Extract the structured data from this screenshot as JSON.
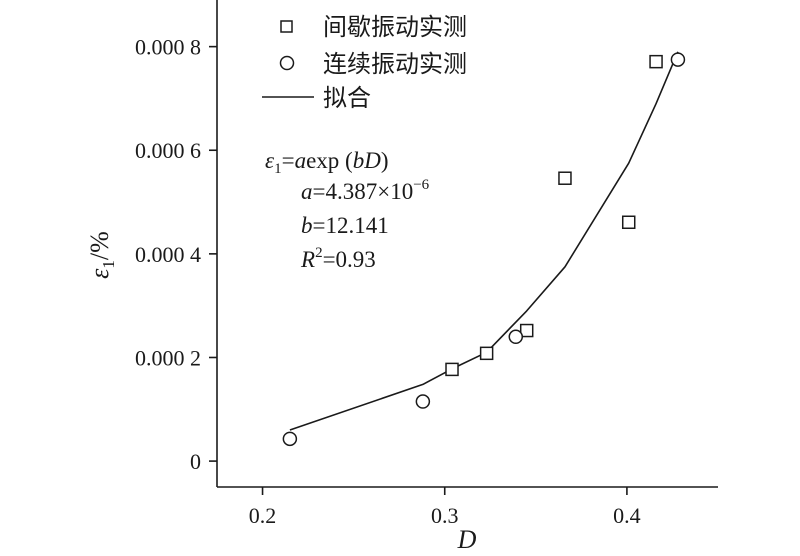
{
  "chart_data": {
    "type": "scatter",
    "xlabel": "D",
    "ylabel": "ε1/%",
    "xlim": [
      0.175,
      0.45
    ],
    "ylim": [
      -5e-05,
      0.00089
    ],
    "x_ticks": [
      0.2,
      0.3,
      0.4
    ],
    "x_tick_labels": [
      "0.2",
      "0.3",
      "0.4"
    ],
    "y_ticks": [
      0,
      0.0002,
      0.0004,
      0.0006,
      0.0008
    ],
    "y_tick_labels": [
      "0",
      "0.000 2",
      "0.000 4",
      "0.000 6",
      "0.000 8"
    ],
    "grid": false,
    "legend_position": "top-left",
    "series": [
      {
        "name": "间歇振动实测",
        "marker": "square",
        "points": [
          {
            "x": 0.304,
            "y": 0.000177
          },
          {
            "x": 0.323,
            "y": 0.000208
          },
          {
            "x": 0.345,
            "y": 0.000252
          },
          {
            "x": 0.366,
            "y": 0.000546
          },
          {
            "x": 0.401,
            "y": 0.000461
          },
          {
            "x": 0.416,
            "y": 0.000771
          }
        ]
      },
      {
        "name": "连续振动实测",
        "marker": "circle",
        "points": [
          {
            "x": 0.215,
            "y": 4.3e-05
          },
          {
            "x": 0.288,
            "y": 0.000115
          },
          {
            "x": 0.339,
            "y": 0.00024
          },
          {
            "x": 0.428,
            "y": 0.000775
          }
        ]
      },
      {
        "name": "拟合",
        "marker": "line",
        "points": [
          {
            "x": 0.215,
            "y": 6e-05
          },
          {
            "x": 0.288,
            "y": 0.000148
          },
          {
            "x": 0.304,
            "y": 0.000178
          },
          {
            "x": 0.323,
            "y": 0.00021
          },
          {
            "x": 0.345,
            "y": 0.00029
          },
          {
            "x": 0.366,
            "y": 0.000375
          },
          {
            "x": 0.401,
            "y": 0.000575
          },
          {
            "x": 0.416,
            "y": 0.00069
          },
          {
            "x": 0.428,
            "y": 0.00079
          }
        ]
      }
    ],
    "annotation": {
      "line1_prefix": "ε",
      "line1_sub": "1",
      "line1_eq": "=",
      "line1_a": "a",
      "line1_exp": "exp (",
      "line1_bD": "bD",
      "line1_close": ")",
      "line2_var": "a",
      "line2_val": "=4.387×10",
      "line2_sup": "−6",
      "line3_var": "b",
      "line3_val": "=12.141",
      "line4_var": "R",
      "line4_sup": "2",
      "line4_val": "=0.93"
    }
  }
}
